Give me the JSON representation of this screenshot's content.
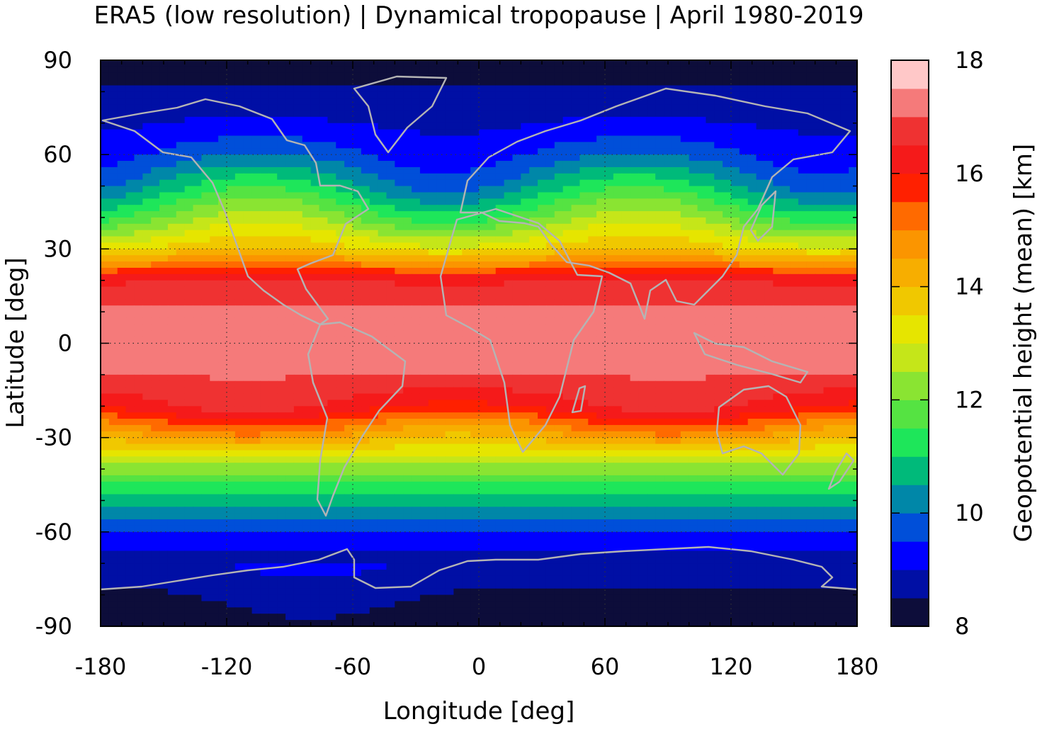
{
  "chart_data": {
    "type": "heatmap",
    "title": "ERA5 (low resolution) | Dynamical tropopause | April 1980-2019",
    "xlabel": "Longitude [deg]",
    "ylabel": "Latitude [deg]",
    "xlim": [
      -180,
      180
    ],
    "ylim": [
      -90,
      90
    ],
    "xticks": [
      -180,
      -120,
      -60,
      0,
      60,
      120,
      180
    ],
    "yticks": [
      90,
      60,
      30,
      0,
      -30,
      -60,
      -90
    ],
    "xtick_labels": [
      "-180",
      "-120",
      "-60",
      "0",
      "60",
      "120",
      "180"
    ],
    "ytick_labels": [
      "90",
      "60",
      "30",
      "0",
      "-30",
      "-60",
      "-90"
    ],
    "grid": "dotted",
    "colorbar": {
      "label": "Geopotential height (mean) [km]",
      "range": [
        8,
        18
      ],
      "ticks": [
        8,
        10,
        12,
        14,
        16,
        18
      ],
      "tick_labels": [
        "8",
        "10",
        "12",
        "14",
        "16",
        "18"
      ],
      "colors": [
        "#0d0d3a",
        "#000fa5",
        "#0000ff",
        "#004fd9",
        "#0087a8",
        "#00ba7a",
        "#1ee65a",
        "#55e342",
        "#8ae432",
        "#c5e619",
        "#e6e500",
        "#f0c800",
        "#f7ae00",
        "#fb9500",
        "#ff6a00",
        "#ff2000",
        "#f51a1a",
        "#ef3232",
        "#f57a7a",
        "#ffc8c8"
      ]
    },
    "zonal_profile_approx": {
      "lat": [
        90,
        80,
        70,
        60,
        50,
        40,
        30,
        20,
        10,
        0,
        -10,
        -20,
        -30,
        -40,
        -50,
        -60,
        -70,
        -80,
        -90
      ],
      "height_km": [
        8.0,
        8.6,
        9.0,
        9.6,
        10.6,
        12.0,
        13.6,
        16.5,
        17.2,
        17.2,
        17.0,
        16.3,
        14.3,
        12.2,
        10.7,
        9.4,
        8.8,
        8.4,
        8.0
      ]
    },
    "coastlines": "world coastlines drawn in light gray"
  }
}
